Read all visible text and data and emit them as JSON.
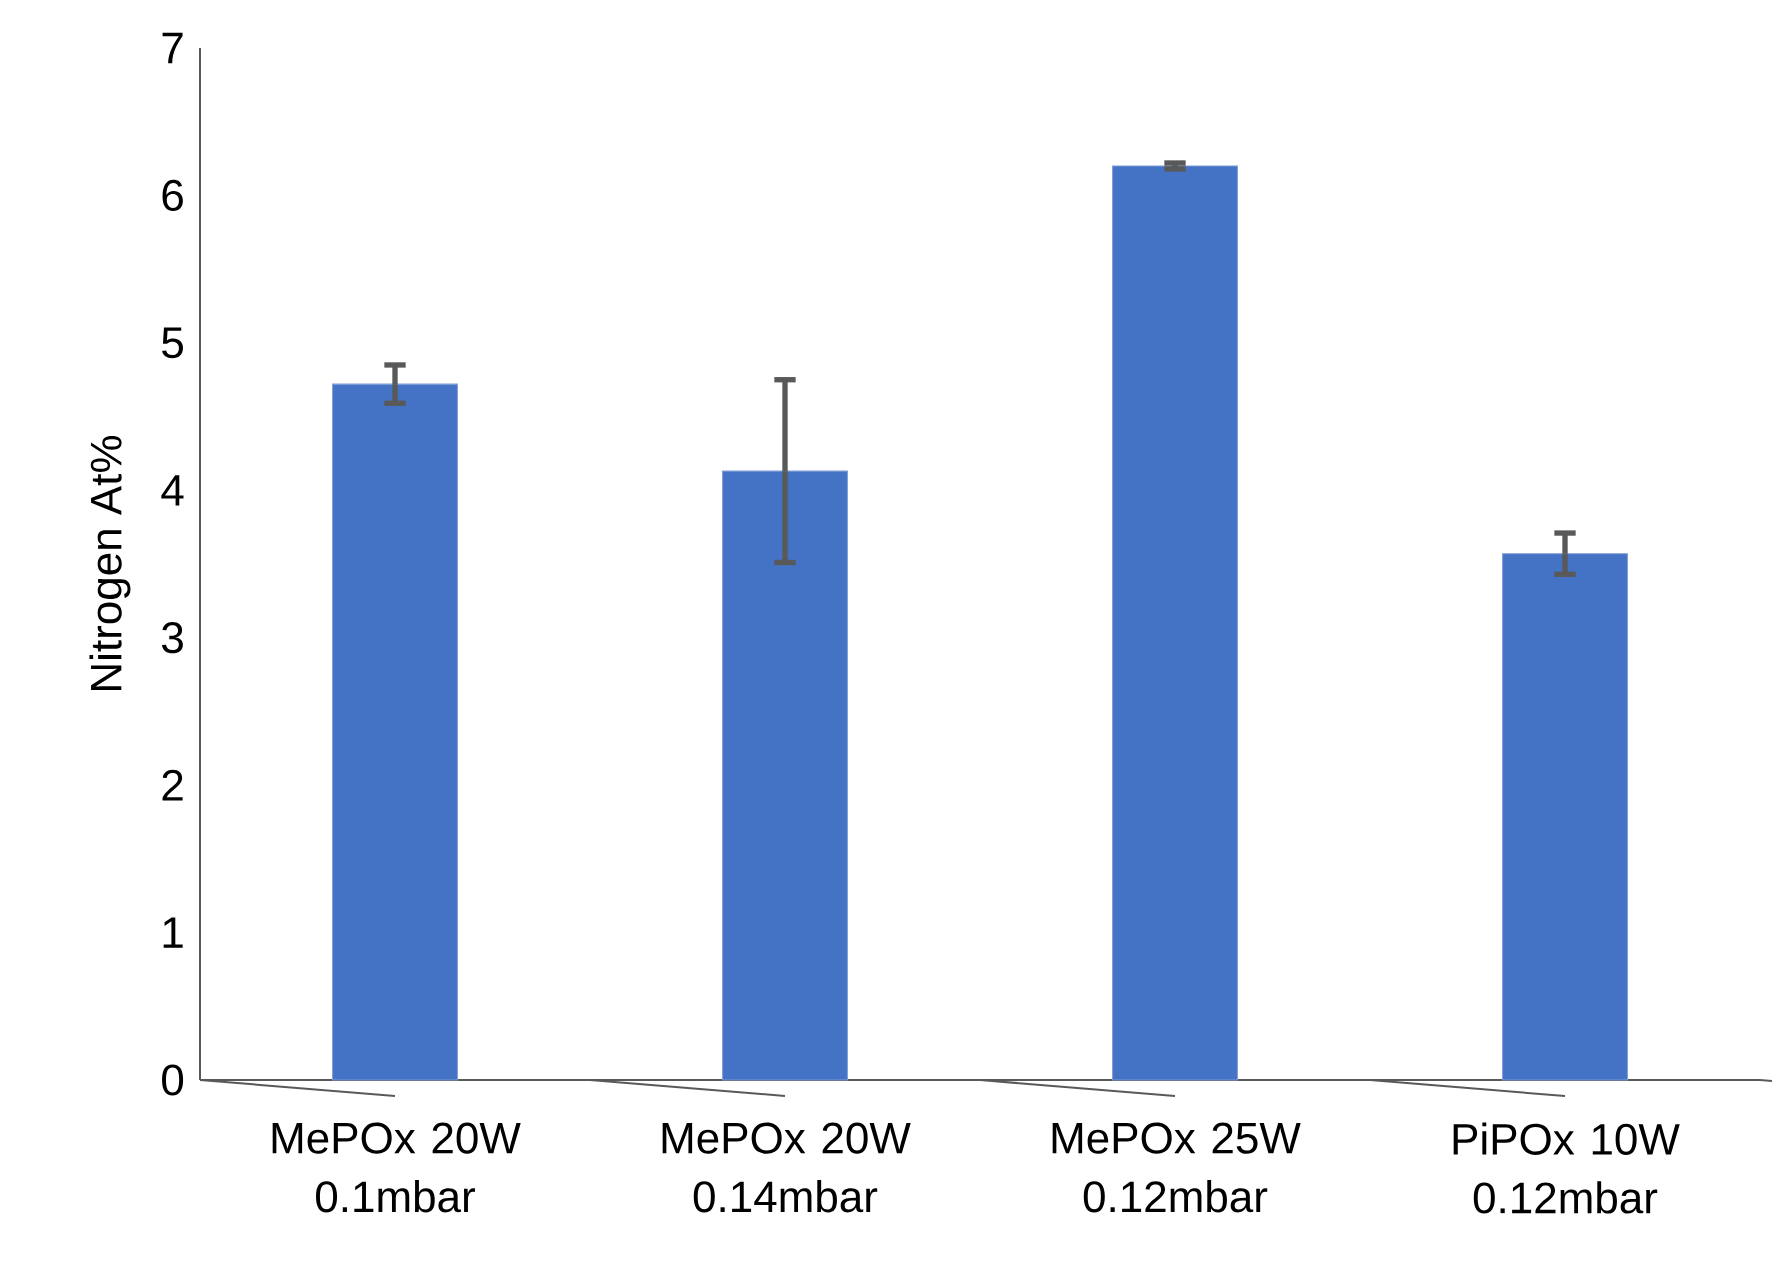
{
  "chart_data": {
    "type": "bar",
    "ylabel": "Nitrogen At%",
    "categories": [
      "MePOx 20W 0.1mbar",
      "MePOx 20W 0.14mbar",
      "MePOx 25W 0.12mbar",
      "PiPOx 10W 0.12mbar"
    ],
    "values": [
      4.72,
      4.13,
      6.2,
      3.57
    ],
    "errors": [
      0.13,
      0.62,
      0.02,
      0.14
    ],
    "color": "#4472c4",
    "ylim": [
      0,
      7
    ],
    "yticks": [
      0,
      1,
      2,
      3,
      4,
      5,
      6,
      7
    ]
  }
}
